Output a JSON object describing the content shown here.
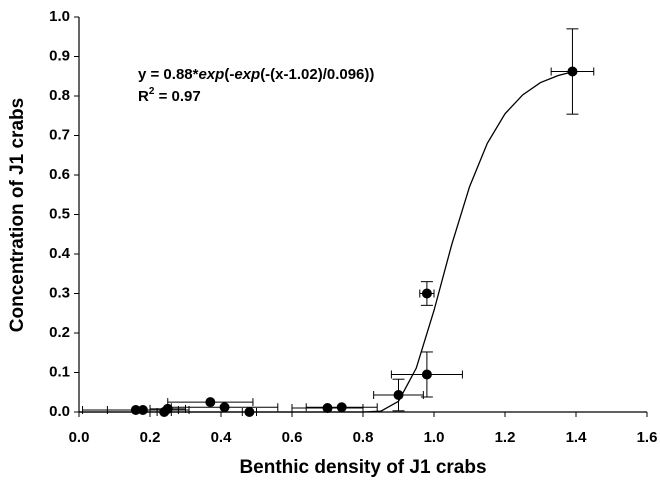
{
  "chart_data": {
    "type": "scatter",
    "xlabel": "Benthic density of J1 crabs",
    "ylabel": "Concentration of J1 crabs",
    "annotation": {
      "equation": [
        "y = 0.88*",
        "exp",
        "(-",
        "exp",
        "(-(x-1.02)/0.096))"
      ],
      "r2": [
        "R",
        "2",
        " = 0.97"
      ]
    },
    "xlim": [
      0,
      1.6
    ],
    "ylim": [
      0,
      1
    ],
    "xticks": [
      {
        "value": 0,
        "label": "0.0"
      },
      0.2,
      0.4,
      0.6,
      0.8,
      {
        "value": 1,
        "label": "1.0"
      },
      1.2,
      1.4,
      1.6
    ],
    "yticks": [
      {
        "value": 0,
        "label": "0.0"
      },
      0.1,
      0.2,
      0.3,
      0.4,
      0.5,
      0.6,
      0.7,
      0.8,
      0.9,
      {
        "value": 1,
        "label": "1.0"
      }
    ],
    "grid": false,
    "series": [
      {
        "color": "#000000",
        "x": [
          0.16,
          0.18,
          0.24,
          0.25,
          0.37,
          0.41,
          0.48,
          0.7,
          0.74,
          0.9,
          0.98,
          0.98,
          1.39
        ],
        "values": [
          0.005,
          0.005,
          0.0,
          0.008,
          0.025,
          0.012,
          0.0,
          0.01,
          0.012,
          0.043,
          0.3,
          0.095,
          0.862
        ],
        "xerr": [
          0.15,
          0.1,
          0.02,
          0.05,
          0.12,
          0.15,
          0.02,
          0.1,
          0.1,
          0.07,
          0.02,
          0.1,
          0.06
        ],
        "yerr": [
          null,
          null,
          null,
          null,
          null,
          null,
          null,
          null,
          null,
          0.04,
          0.03,
          0.057,
          0.108
        ]
      }
    ],
    "fit": {
      "color": "#000000",
      "x": [
        0.0,
        0.7,
        0.8,
        0.85,
        0.9,
        0.95,
        1.0,
        1.05,
        1.1,
        1.15,
        1.2,
        1.25,
        1.3,
        1.35,
        1.39
      ],
      "values": [
        0.0,
        0.0,
        0.0,
        0.002,
        0.027,
        0.111,
        0.257,
        0.424,
        0.57,
        0.68,
        0.755,
        0.803,
        0.834,
        0.852,
        0.861
      ]
    }
  }
}
